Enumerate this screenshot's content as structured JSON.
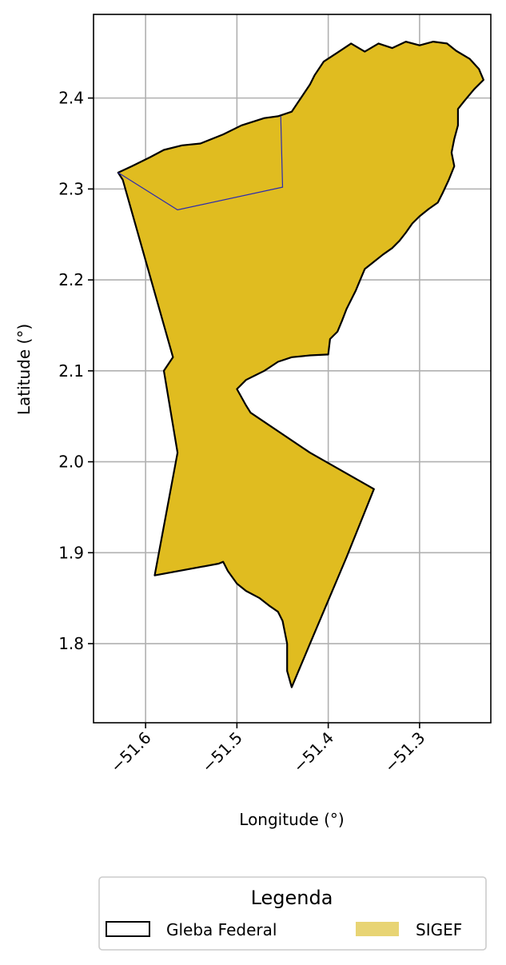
{
  "map": {
    "xlabel": "Longitude (°)",
    "ylabel": "Latitude (°)",
    "xlim": [
      -51.657,
      -51.222
    ],
    "ylim": [
      1.713,
      2.492
    ],
    "x_ticks": [
      -51.6,
      -51.5,
      -51.4,
      -51.3
    ],
    "x_tick_labels": [
      "−51.6",
      "−51.5",
      "−51.4",
      "−51.3"
    ],
    "y_ticks": [
      1.8,
      1.9,
      2.0,
      2.1,
      2.2,
      2.3,
      2.4
    ],
    "y_tick_labels": [
      "1.8",
      "1.9",
      "2.0",
      "2.1",
      "2.2",
      "2.3",
      "2.4"
    ],
    "grid": true,
    "colors": {
      "sigef_fill": "#e0bc20",
      "gleba_outline": "#000000",
      "inner_boundary": "#2a2ab0",
      "legend_sigef_patch": "#e8d474"
    },
    "layers": {
      "gleba_federal": {
        "name": "Gleba Federal",
        "coordinates": [
          [
            -51.375,
            2.46
          ],
          [
            -51.36,
            2.451
          ],
          [
            -51.345,
            2.46
          ],
          [
            -51.33,
            2.455
          ],
          [
            -51.315,
            2.462
          ],
          [
            -51.3,
            2.458
          ],
          [
            -51.285,
            2.462
          ],
          [
            -51.27,
            2.46
          ],
          [
            -51.26,
            2.452
          ],
          [
            -51.245,
            2.443
          ],
          [
            -51.235,
            2.432
          ],
          [
            -51.23,
            2.42
          ],
          [
            -51.24,
            2.41
          ],
          [
            -51.25,
            2.398
          ],
          [
            -51.258,
            2.388
          ],
          [
            -51.258,
            2.37
          ],
          [
            -51.262,
            2.355
          ],
          [
            -51.265,
            2.34
          ],
          [
            -51.262,
            2.325
          ],
          [
            -51.268,
            2.31
          ],
          [
            -51.275,
            2.295
          ],
          [
            -51.28,
            2.285
          ],
          [
            -51.29,
            2.278
          ],
          [
            -51.3,
            2.27
          ],
          [
            -51.308,
            2.262
          ],
          [
            -51.315,
            2.252
          ],
          [
            -51.322,
            2.243
          ],
          [
            -51.33,
            2.235
          ],
          [
            -51.34,
            2.228
          ],
          [
            -51.35,
            2.22
          ],
          [
            -51.36,
            2.212
          ],
          [
            -51.365,
            2.2
          ],
          [
            -51.37,
            2.188
          ],
          [
            -51.375,
            2.178
          ],
          [
            -51.38,
            2.168
          ],
          [
            -51.385,
            2.155
          ],
          [
            -51.39,
            2.143
          ],
          [
            -51.398,
            2.135
          ],
          [
            -51.4,
            2.118
          ],
          [
            -51.42,
            2.117
          ],
          [
            -51.44,
            2.115
          ],
          [
            -51.455,
            2.11
          ],
          [
            -51.47,
            2.1
          ],
          [
            -51.48,
            2.095
          ],
          [
            -51.49,
            2.09
          ],
          [
            -51.5,
            2.08
          ],
          [
            -51.49,
            2.062
          ],
          [
            -51.485,
            2.054
          ],
          [
            -51.42,
            2.01
          ],
          [
            -51.35,
            1.97
          ],
          [
            -51.38,
            1.895
          ],
          [
            -51.42,
            1.8
          ],
          [
            -51.44,
            1.752
          ],
          [
            -51.445,
            1.77
          ],
          [
            -51.445,
            1.782
          ],
          [
            -51.445,
            1.8
          ],
          [
            -51.45,
            1.825
          ],
          [
            -51.455,
            1.835
          ],
          [
            -51.465,
            1.842
          ],
          [
            -51.475,
            1.85
          ],
          [
            -51.49,
            1.858
          ],
          [
            -51.5,
            1.866
          ],
          [
            -51.51,
            1.88
          ],
          [
            -51.515,
            1.89
          ],
          [
            -51.52,
            1.888
          ],
          [
            -51.59,
            1.875
          ],
          [
            -51.565,
            2.01
          ],
          [
            -51.58,
            2.1
          ],
          [
            -51.57,
            2.115
          ],
          [
            -51.625,
            2.31
          ],
          [
            -51.63,
            2.318
          ],
          [
            -51.615,
            2.325
          ],
          [
            -51.595,
            2.335
          ],
          [
            -51.58,
            2.343
          ],
          [
            -51.56,
            2.348
          ],
          [
            -51.54,
            2.35
          ],
          [
            -51.515,
            2.36
          ],
          [
            -51.495,
            2.37
          ],
          [
            -51.47,
            2.378
          ],
          [
            -51.455,
            2.38
          ],
          [
            -51.44,
            2.385
          ],
          [
            -51.43,
            2.4
          ],
          [
            -51.42,
            2.415
          ],
          [
            -51.415,
            2.425
          ],
          [
            -51.405,
            2.44
          ],
          [
            -51.39,
            2.45
          ],
          [
            -51.375,
            2.46
          ]
        ]
      },
      "sigef": {
        "name": "SIGEF"
      },
      "inner_boundary": {
        "coordinates": [
          [
            -51.63,
            2.318
          ],
          [
            -51.565,
            2.277
          ],
          [
            -51.45,
            2.302
          ],
          [
            -51.452,
            2.38
          ]
        ]
      }
    },
    "legend": {
      "title": "Legenda",
      "items": [
        {
          "label": "Gleba Federal",
          "kind": "outline"
        },
        {
          "label": "SIGEF",
          "kind": "fill"
        }
      ]
    }
  }
}
